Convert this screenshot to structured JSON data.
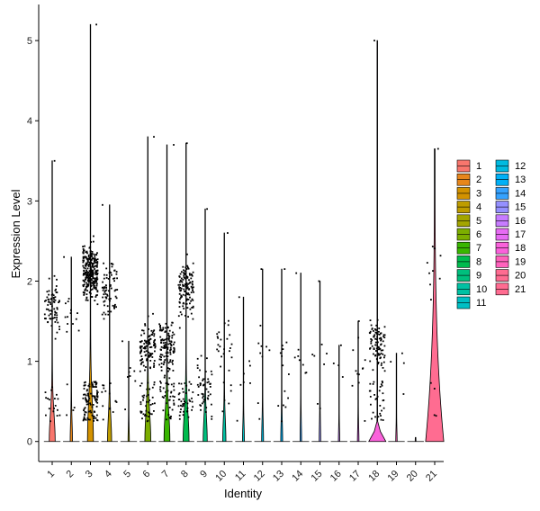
{
  "chart_data": {
    "type": "violin",
    "xlabel": "Identity",
    "ylabel": "Expression Level",
    "ylim": [
      -0.25,
      5.45
    ],
    "yticks": [
      0,
      1,
      2,
      3,
      4,
      5
    ],
    "categories": [
      "1",
      "2",
      "3",
      "4",
      "5",
      "6",
      "7",
      "8",
      "9",
      "10",
      "11",
      "12",
      "13",
      "14",
      "15",
      "16",
      "17",
      "18",
      "19",
      "20",
      "21"
    ],
    "max_values": [
      3.5,
      2.3,
      5.2,
      2.95,
      1.25,
      3.8,
      3.7,
      3.72,
      2.9,
      2.6,
      1.8,
      2.15,
      2.15,
      2.1,
      2.0,
      1.2,
      1.5,
      5.0,
      1.1,
      0.05,
      3.65
    ],
    "point_density": [
      90,
      18,
      380,
      90,
      8,
      150,
      160,
      170,
      50,
      30,
      8,
      10,
      14,
      8,
      8,
      4,
      12,
      120,
      4,
      0,
      14
    ],
    "point_center": [
      1.7,
      1.5,
      2.1,
      1.9,
      0.8,
      1.2,
      1.2,
      1.9,
      0.8,
      1.2,
      0.9,
      1.2,
      1.0,
      1.0,
      1.0,
      0.9,
      0.9,
      1.2,
      0.9,
      0.0,
      2.2
    ],
    "violin_width": [
      0.3,
      0.1,
      0.3,
      0.2,
      0.05,
      0.3,
      0.3,
      0.3,
      0.2,
      0.15,
      0.08,
      0.08,
      0.08,
      0.06,
      0.06,
      0.05,
      0.06,
      0.45,
      0.05,
      0.02,
      0.45
    ],
    "colors": [
      "#F8766D",
      "#E7861B",
      "#D39200",
      "#BE9C00",
      "#A3A500",
      "#7CAE00",
      "#39B600",
      "#00BB4E",
      "#00BF7D",
      "#00C1A3",
      "#00BFC4",
      "#00BAE0",
      "#00B0F6",
      "#35A2FF",
      "#9590FF",
      "#C77CFF",
      "#E76BF3",
      "#FA62DB",
      "#FF62BC",
      "#FF6C91",
      "#FF6C91"
    ],
    "legend_position": "right",
    "grid": false
  }
}
